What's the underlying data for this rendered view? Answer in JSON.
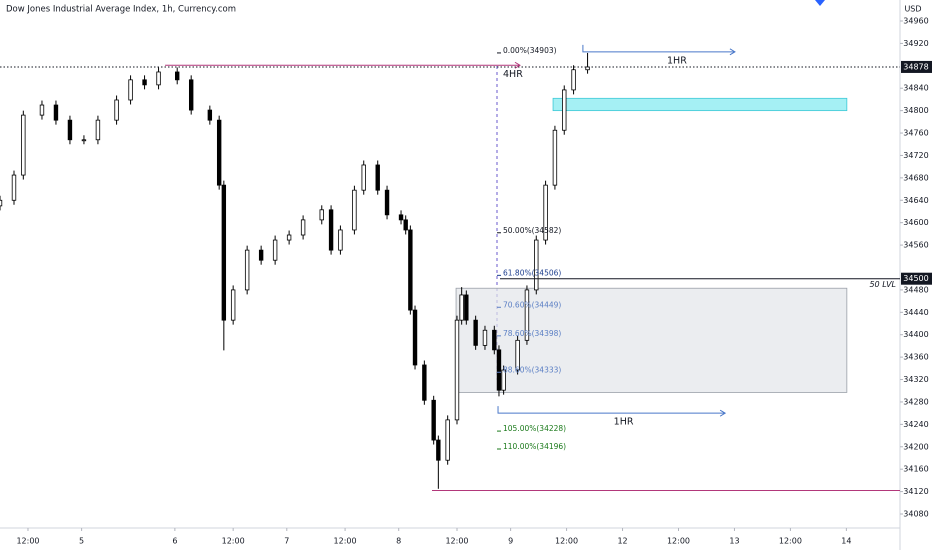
{
  "chart_data": {
    "type": "candlestick",
    "title": "Dow Jones Industrial Average Index, 1h, Currency.com",
    "currency": "USD",
    "x": [
      0,
      3,
      5,
      9,
      12,
      15,
      18,
      21,
      25,
      28,
      31,
      34,
      38,
      41,
      45,
      47,
      48,
      50,
      53,
      56,
      59,
      62,
      65,
      69,
      71,
      73,
      76,
      78,
      81,
      83,
      86,
      87,
      88,
      89,
      91,
      93,
      94,
      96,
      98,
      99,
      100,
      102,
      104,
      106,
      107,
      108,
      111,
      113,
      115,
      117,
      119,
      121,
      123,
      126
    ],
    "open": [
      34630,
      34640,
      34685,
      34792,
      34810,
      34783,
      34748,
      34748,
      34783,
      34819,
      34855,
      34846,
      34869,
      34855,
      34801,
      34783,
      34667,
      34426,
      34480,
      34551,
      34533,
      34569,
      34578,
      34605,
      34623,
      34551,
      34587,
      34658,
      34703,
      34658,
      34614,
      34605,
      34587,
      34444,
      34346,
      34283,
      34212,
      34176,
      34248,
      34426,
      34471,
      34426,
      34381,
      34408,
      34373,
      34301,
      34337,
      34390,
      34480,
      34569,
      34667,
      34765,
      34837,
      34873
    ],
    "high": [
      34648,
      34693,
      34800,
      34818,
      34818,
      34791,
      34756,
      34791,
      34827,
      34863,
      34863,
      34877,
      34877,
      34863,
      34809,
      34791,
      34675,
      34488,
      34559,
      34559,
      34577,
      34586,
      34613,
      34631,
      34631,
      34595,
      34666,
      34711,
      34711,
      34666,
      34622,
      34613,
      34595,
      34452,
      34354,
      34291,
      34220,
      34256,
      34434,
      34485,
      34479,
      34434,
      34416,
      34416,
      34381,
      34345,
      34398,
      34488,
      34577,
      34675,
      34773,
      34845,
      34881,
      34903
    ],
    "low": [
      34622,
      34632,
      34677,
      34784,
      34775,
      34740,
      34740,
      34740,
      34775,
      34811,
      34838,
      34838,
      34847,
      34793,
      34775,
      34659,
      34372,
      34418,
      34472,
      34525,
      34525,
      34561,
      34570,
      34597,
      34543,
      34543,
      34579,
      34650,
      34650,
      34606,
      34597,
      34579,
      34436,
      34338,
      34275,
      34204,
      34125,
      34168,
      34240,
      34418,
      34418,
      34373,
      34373,
      34365,
      34290,
      34293,
      34329,
      34382,
      34472,
      34561,
      34659,
      34757,
      34829,
      34866
    ],
    "close": [
      34640,
      34685,
      34792,
      34810,
      34783,
      34748,
      34748,
      34783,
      34819,
      34855,
      34846,
      34869,
      34855,
      34801,
      34783,
      34667,
      34426,
      34480,
      34551,
      34533,
      34569,
      34578,
      34605,
      34623,
      34551,
      34587,
      34658,
      34703,
      34658,
      34614,
      34605,
      34587,
      34444,
      34346,
      34283,
      34212,
      34176,
      34248,
      34426,
      34471,
      34426,
      34381,
      34408,
      34373,
      34301,
      34337,
      34390,
      34480,
      34569,
      34667,
      34765,
      34837,
      34873,
      34878
    ],
    "up_color": "#ffffff",
    "down_color": "#000000",
    "xlim": [
      0,
      193
    ],
    "ylim": [
      34080,
      34960
    ],
    "yticks": [
      34960,
      34920,
      34840,
      34800,
      34760,
      34720,
      34680,
      34640,
      34600,
      34560,
      34480,
      34440,
      34400,
      34360,
      34320,
      34280,
      34240,
      34200,
      34160,
      34120,
      34080
    ],
    "xticks": [
      {
        "value": 6,
        "label": "12:00"
      },
      {
        "value": 17.5,
        "label": "5"
      },
      {
        "value": 37.5,
        "label": "6"
      },
      {
        "value": 50,
        "label": "12:00"
      },
      {
        "value": 61.5,
        "label": "7"
      },
      {
        "value": 74,
        "label": "12:00"
      },
      {
        "value": 85.5,
        "label": "8"
      },
      {
        "value": 98,
        "label": "12:00"
      },
      {
        "value": 109.5,
        "label": "9"
      },
      {
        "value": 121.5,
        "label": "12:00"
      },
      {
        "value": 133.5,
        "label": "12"
      },
      {
        "value": 145.5,
        "label": "12:00"
      },
      {
        "value": 157.5,
        "label": "13"
      },
      {
        "value": 169.5,
        "label": "12:00"
      },
      {
        "value": 181.5,
        "label": "14"
      }
    ],
    "last_price": 34878,
    "level_price": 34500,
    "level_label": "50 LVL",
    "low_line": 34122,
    "fib_levels": [
      {
        "value": 34903,
        "label": "0.00%(34903)",
        "color": "#131722"
      },
      {
        "value": 34582,
        "label": "50.00%(34582)",
        "color": "#131722"
      },
      {
        "value": 34506,
        "label": "61.80%(34506)",
        "color": "#1e3f8f"
      },
      {
        "value": 34449,
        "label": "70.60%(34449)",
        "color": "#5b7fc4"
      },
      {
        "value": 34398,
        "label": "78.60%(34398)",
        "color": "#5b7fc4"
      },
      {
        "value": 34333,
        "label": "88.60%(34333)",
        "color": "#5b7fc4"
      },
      {
        "value": 34228,
        "label": "105.00%(34228)",
        "color": "#1b7a1b"
      },
      {
        "value": 34196,
        "label": "110.00%(34196)",
        "color": "#1b7a1b"
      }
    ],
    "zones": [
      {
        "low": 34800,
        "high": 34822,
        "x": [
          118.6,
          181.6
        ],
        "color": "#7fe9f0"
      },
      {
        "low": 34297,
        "high": 34483,
        "x": [
          97.8,
          181.6
        ],
        "color": "#e3e6ea"
      }
    ],
    "arrows": [
      {
        "label": "4HR",
        "value": 34881,
        "x": [
          35.4,
          111.5
        ],
        "color": "#b2377a"
      },
      {
        "label": "1HR",
        "value": 34905,
        "x": [
          125,
          157.6
        ],
        "color": "#4a78c9"
      },
      {
        "label": "1HR",
        "value": 34260,
        "x": [
          106.8,
          155.5
        ],
        "color": "#4a78c9"
      }
    ]
  }
}
